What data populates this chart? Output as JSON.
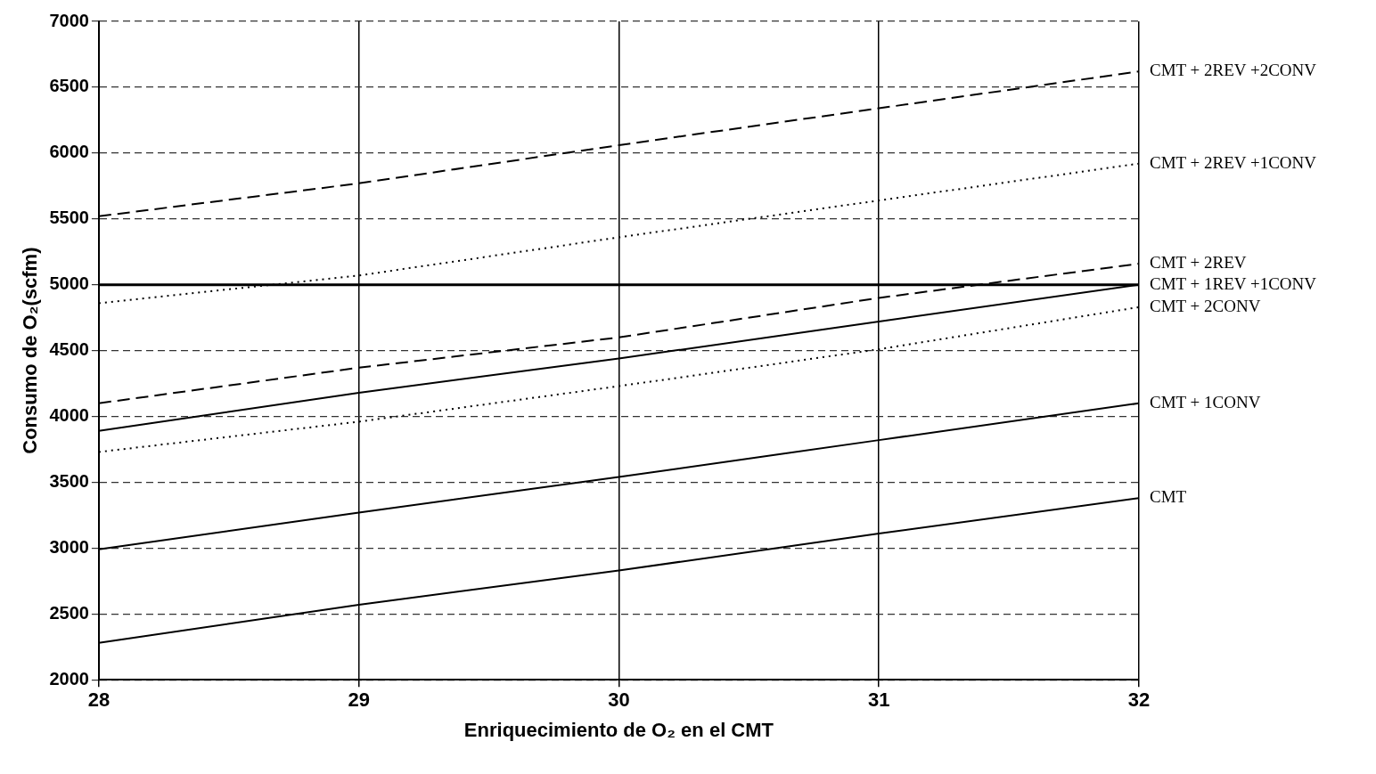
{
  "chart_data": {
    "type": "line",
    "xlabel": "Enriquecimiento de O₂ en el CMT",
    "ylabel": "Consumo de O₂(scfm)",
    "x": [
      28,
      29,
      30,
      31,
      32
    ],
    "xlim": [
      28,
      32
    ],
    "xticks": [
      28,
      29,
      30,
      31,
      32
    ],
    "ylim": [
      2000,
      7000
    ],
    "yticks": [
      2000,
      2500,
      3000,
      3500,
      4000,
      4500,
      5000,
      5500,
      6000,
      6500,
      7000
    ],
    "grid": true,
    "marker": "none",
    "legend": false,
    "ref_lines": [
      {
        "axis": "y",
        "value": 5000
      }
    ],
    "series": [
      {
        "name": "CMT + 2REV +2CONV",
        "color": "#000000",
        "line_style": "dashed",
        "values": [
          5520,
          5770,
          6060,
          6340,
          6620
        ]
      },
      {
        "name": "CMT + 2REV +1CONV",
        "color": "#000000",
        "line_style": "dotted",
        "values": [
          4860,
          5070,
          5360,
          5640,
          5920
        ]
      },
      {
        "name": "CMT + 2REV",
        "color": "#000000",
        "line_style": "dashed",
        "values": [
          4100,
          4370,
          4600,
          4900,
          5160
        ]
      },
      {
        "name": "CMT + 1REV +1CONV",
        "color": "#000000",
        "line_style": "solid",
        "values": [
          3890,
          4180,
          4440,
          4720,
          5000
        ]
      },
      {
        "name": "CMT + 2CONV",
        "color": "#000000",
        "line_style": "dotted",
        "values": [
          3730,
          3960,
          4230,
          4510,
          4830
        ]
      },
      {
        "name": "CMT + 1CONV",
        "color": "#000000",
        "line_style": "solid",
        "values": [
          2990,
          3270,
          3540,
          3820,
          4100
        ]
      },
      {
        "name": "CMT",
        "color": "#000000",
        "line_style": "solid",
        "values": [
          2280,
          2570,
          2830,
          3110,
          3380
        ]
      }
    ]
  }
}
